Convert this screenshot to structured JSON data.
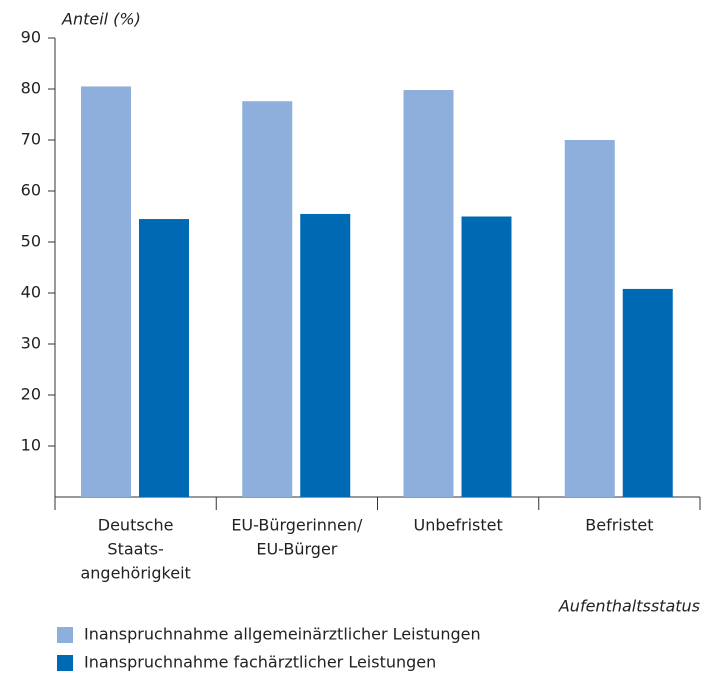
{
  "chart_data": {
    "type": "bar",
    "y_label": "Anteil (%)",
    "x_label": "Aufenthaltsstatus",
    "categories": [
      [
        "Deutsche",
        "Staats-",
        "angehörigkeit"
      ],
      [
        "EU-Bürgerinnen/",
        "EU-Bürger"
      ],
      [
        "Unbefristet"
      ],
      [
        "Befristet"
      ]
    ],
    "series": [
      {
        "name": "Inanspruchnahme allgemeinärztlicher Leistungen",
        "color": "#8eaedc",
        "values": [
          80.5,
          77.6,
          79.8,
          70
        ]
      },
      {
        "name": "Inanspruchnahme fachärztlicher Leistungen",
        "color": "#0069b4",
        "values": [
          54.5,
          55.5,
          55,
          40.8
        ]
      }
    ],
    "ylim": [
      0,
      90
    ],
    "yticks": [
      10,
      20,
      30,
      40,
      50,
      60,
      70,
      80,
      90
    ]
  }
}
